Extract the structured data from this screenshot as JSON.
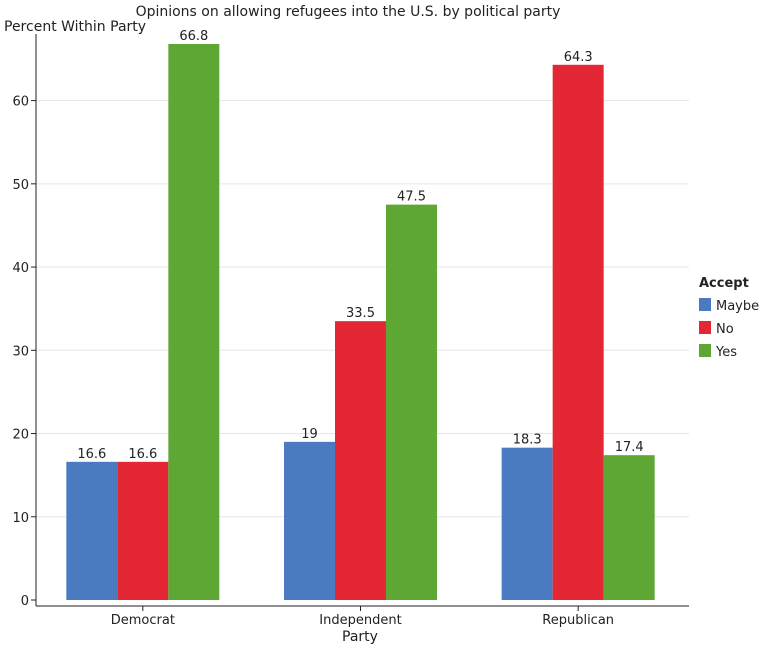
{
  "chart_data": {
    "type": "bar",
    "title": "Opinions on allowing refugees into the U.S. by political party",
    "xlabel": "Party",
    "ylabel": "Percent Within Party",
    "categories": [
      "Democrat",
      "Independent",
      "Republican"
    ],
    "series": [
      {
        "name": "Maybe",
        "values": [
          16.6,
          19,
          18.3
        ],
        "color": "#4a7bc0",
        "labels": [
          "16.6",
          "19",
          "18.3"
        ]
      },
      {
        "name": "No",
        "values": [
          16.6,
          33.5,
          64.3
        ],
        "color": "#e32735",
        "labels": [
          "16.6",
          "33.5",
          "64.3"
        ]
      },
      {
        "name": "Yes",
        "values": [
          66.8,
          47.5,
          17.4
        ],
        "color": "#5ea734",
        "labels": [
          "66.8",
          "47.5",
          "17.4"
        ]
      }
    ],
    "legend_title": "Accept",
    "legend_position": "right",
    "ylim": [
      0,
      68
    ],
    "yticks": [
      0,
      10,
      20,
      30,
      40,
      50,
      60
    ],
    "grid": true
  }
}
